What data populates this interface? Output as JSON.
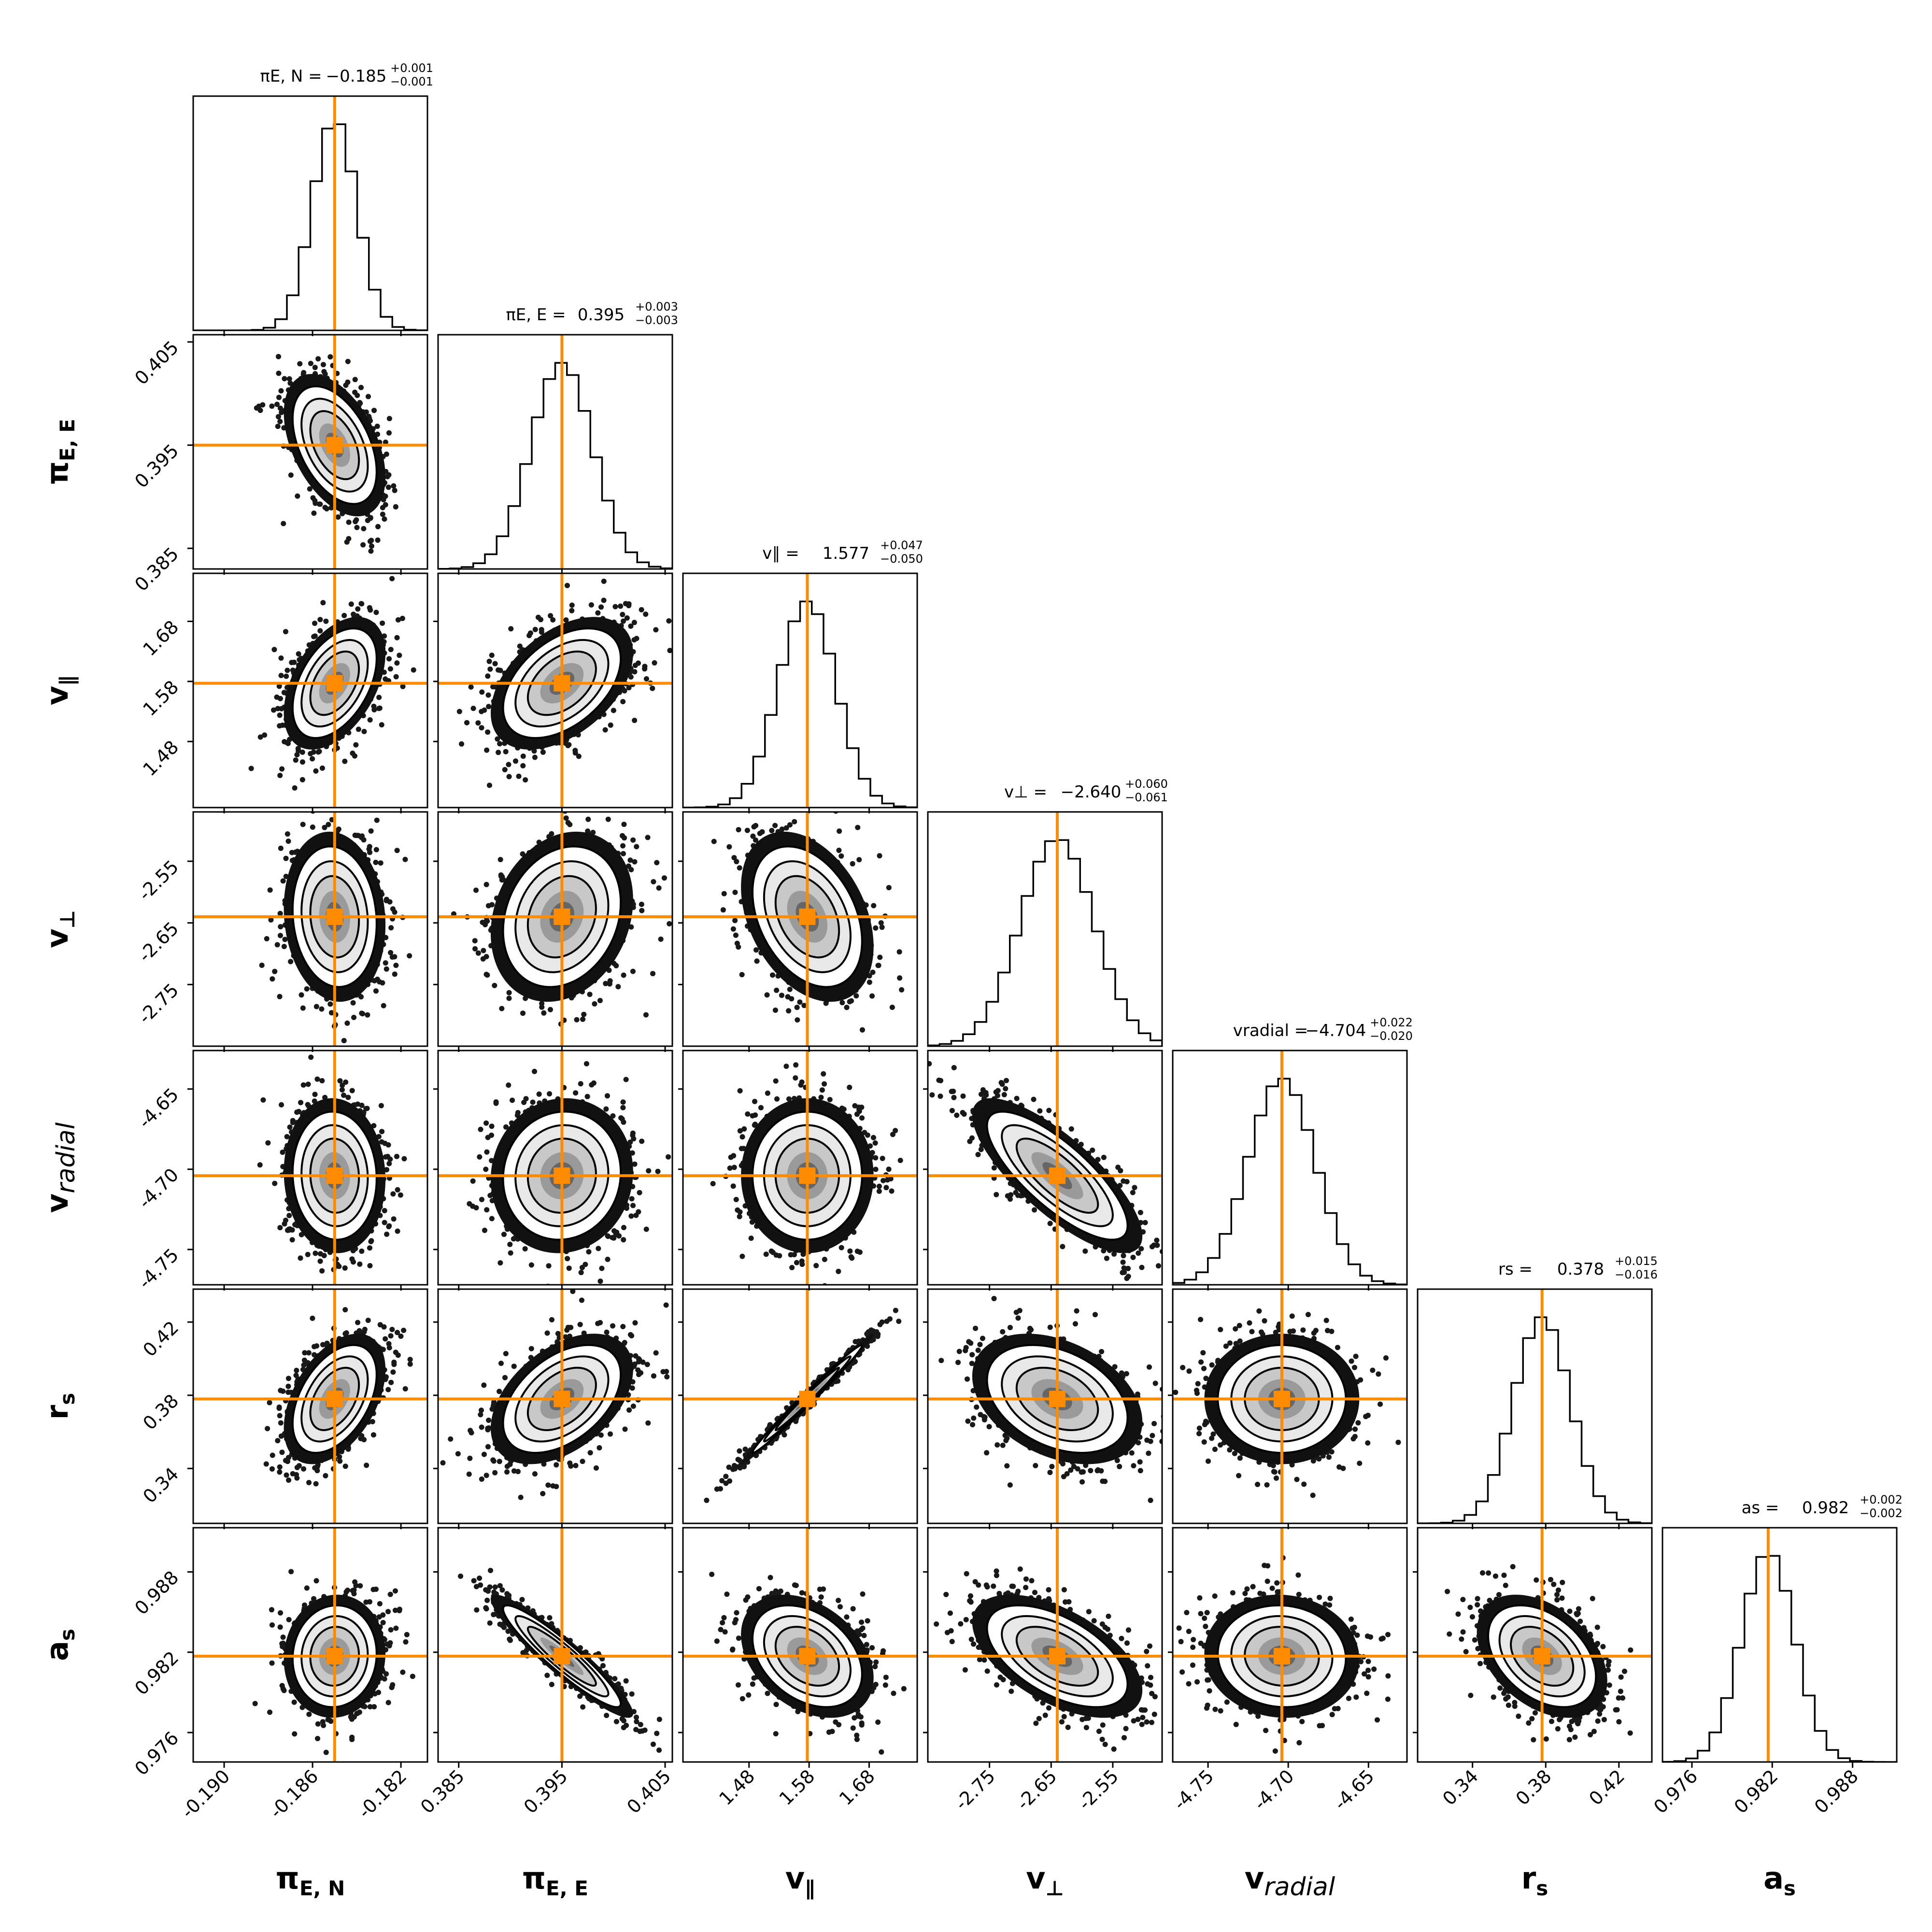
{
  "chart_data": {
    "type": "corner",
    "marker_color": "#ff8c00",
    "contour_color": "#000000",
    "parameters": [
      {
        "id": "piEN",
        "label_main": "π",
        "label_sub": "E, N",
        "label_sub_italic": false,
        "title_prefix": "πE, N = ",
        "title_value": "−0.185",
        "err_plus": "+0.001",
        "err_minus": "−0.001",
        "median": -0.185,
        "std": 0.001,
        "range": [
          -0.1914,
          -0.1808
        ],
        "ticks": [
          -0.19,
          -0.186,
          -0.182
        ],
        "tick_labels": [
          "-0.190",
          "-0.186",
          "-0.182"
        ]
      },
      {
        "id": "piEE",
        "label_main": "π",
        "label_sub": "E, E",
        "label_sub_italic": false,
        "title_prefix": "πE, E = ",
        "title_value": "0.395",
        "err_plus": "+0.003",
        "err_minus": "−0.003",
        "median": 0.395,
        "std": 0.003,
        "range": [
          0.383,
          0.4057
        ],
        "ticks": [
          0.385,
          0.395,
          0.405
        ],
        "tick_labels": [
          "0.385",
          "0.395",
          "0.405"
        ]
      },
      {
        "id": "vpar",
        "label_main": "v",
        "label_sub": "∥",
        "label_sub_italic": false,
        "title_prefix": "v∥ = ",
        "title_value": "1.577",
        "err_plus": "+0.047",
        "err_minus": "−0.050",
        "median": 1.577,
        "std": 0.048,
        "range": [
          1.37,
          1.76
        ],
        "ticks": [
          1.48,
          1.58,
          1.68
        ],
        "tick_labels": [
          "1.48",
          "1.58",
          "1.68"
        ]
      },
      {
        "id": "vperp",
        "label_main": "v",
        "label_sub": "⊥",
        "label_sub_italic": false,
        "title_prefix": "v⊥ = ",
        "title_value": "−2.640",
        "err_plus": "+0.060",
        "err_minus": "−0.061",
        "median": -2.64,
        "std": 0.06,
        "range": [
          -2.85,
          -2.47
        ],
        "ticks": [
          -2.75,
          -2.65,
          -2.55
        ],
        "tick_labels": [
          "-2.75",
          "-2.65",
          "-2.55"
        ]
      },
      {
        "id": "vrad",
        "label_main": "v",
        "label_sub": "radial",
        "label_sub_italic": true,
        "title_prefix": "vradial = ",
        "title_value": "−4.704",
        "err_plus": "+0.022",
        "err_minus": "−0.020",
        "median": -4.704,
        "std": 0.021,
        "range": [
          -4.772,
          -4.626
        ],
        "ticks": [
          -4.75,
          -4.7,
          -4.65
        ],
        "tick_labels": [
          "-4.75",
          "-4.70",
          "-4.65"
        ]
      },
      {
        "id": "rs",
        "label_main": "r",
        "label_sub": "s",
        "label_sub_italic": false,
        "title_prefix": "rs = ",
        "title_value": "0.378",
        "err_plus": "+0.015",
        "err_minus": "−0.016",
        "median": 0.378,
        "std": 0.0155,
        "range": [
          0.31,
          0.438
        ],
        "ticks": [
          0.34,
          0.38,
          0.42
        ],
        "tick_labels": [
          "0.34",
          "0.38",
          "0.42"
        ]
      },
      {
        "id": "as",
        "label_main": "a",
        "label_sub": "s",
        "label_sub_italic": false,
        "title_prefix": "as = ",
        "title_value": "0.982",
        "err_plus": "+0.002",
        "err_minus": "−0.002",
        "median": 0.9817,
        "std": 0.002,
        "range": [
          0.9738,
          0.9913
        ],
        "ticks": [
          0.976,
          0.982,
          0.988
        ],
        "tick_labels": [
          "0.976",
          "0.982",
          "0.988"
        ]
      }
    ],
    "correlations": [
      {
        "pair": [
          "piEE",
          "piEN"
        ],
        "rho": -0.45
      },
      {
        "pair": [
          "vpar",
          "piEN"
        ],
        "rho": 0.45
      },
      {
        "pair": [
          "vpar",
          "piEE"
        ],
        "rho": 0.45
      },
      {
        "pair": [
          "vperp",
          "piEN"
        ],
        "rho": -0.1
      },
      {
        "pair": [
          "vperp",
          "piEE"
        ],
        "rho": 0.2
      },
      {
        "pair": [
          "vperp",
          "vpar"
        ],
        "rho": -0.35
      },
      {
        "pair": [
          "vrad",
          "piEN"
        ],
        "rho": -0.05
      },
      {
        "pair": [
          "vrad",
          "piEE"
        ],
        "rho": 0.05
      },
      {
        "pair": [
          "vrad",
          "vpar"
        ],
        "rho": 0.0
      },
      {
        "pair": [
          "vrad",
          "vperp"
        ],
        "rho": -0.78
      },
      {
        "pair": [
          "rs",
          "piEN"
        ],
        "rho": 0.45
      },
      {
        "pair": [
          "rs",
          "piEE"
        ],
        "rho": 0.45
      },
      {
        "pair": [
          "rs",
          "vpar"
        ],
        "rho": 0.99
      },
      {
        "pair": [
          "rs",
          "vperp"
        ],
        "rho": -0.35
      },
      {
        "pair": [
          "rs",
          "vrad"
        ],
        "rho": 0.0
      },
      {
        "pair": [
          "as",
          "piEN"
        ],
        "rho": 0.05
      },
      {
        "pair": [
          "as",
          "piEE"
        ],
        "rho": -0.93
      },
      {
        "pair": [
          "as",
          "vpar"
        ],
        "rho": -0.35
      },
      {
        "pair": [
          "as",
          "vperp"
        ],
        "rho": -0.55
      },
      {
        "pair": [
          "as",
          "vrad"
        ],
        "rho": -0.05
      },
      {
        "pair": [
          "as",
          "rs"
        ],
        "rho": -0.4
      }
    ]
  }
}
